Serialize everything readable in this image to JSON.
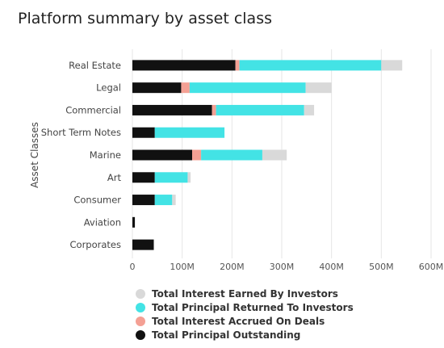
{
  "chart_data": {
    "type": "bar",
    "orientation": "horizontal",
    "stacked": true,
    "title": "Platform summary by asset class",
    "ylabel": "Asset Classes",
    "categories": [
      "Real Estate",
      "Legal",
      "Commercial",
      "Short Term Notes",
      "Marine",
      "Art",
      "Consumer",
      "Aviation",
      "Corporates"
    ],
    "series": [
      {
        "name": "Total Principal Outstanding",
        "color": "#111111",
        "values": [
          207,
          98,
          160,
          45,
          120,
          45,
          45,
          5,
          43
        ]
      },
      {
        "name": "Total Interest Accrued On Deals",
        "color": "#f4a094",
        "values": [
          8,
          17,
          8,
          0,
          18,
          0,
          0,
          0,
          0
        ]
      },
      {
        "name": "Total Principal Returned To Investors",
        "color": "#43e3e5",
        "values": [
          285,
          233,
          177,
          140,
          123,
          66,
          35,
          0,
          0
        ]
      },
      {
        "name": "Total Interest Earned By Investors",
        "color": "#d9d9d9",
        "values": [
          42,
          52,
          20,
          0,
          49,
          6,
          7,
          0,
          0
        ]
      }
    ],
    "x_ticks": [
      "0",
      "100M",
      "200M",
      "300M",
      "400M",
      "500M",
      "600M"
    ],
    "xlim": [
      0,
      600
    ],
    "grid": "vertical",
    "legend_order": [
      "Total Interest Earned By Investors",
      "Total Principal Returned To Investors",
      "Total Interest Accrued On Deals",
      "Total Principal Outstanding"
    ],
    "legend_placement": "bottom"
  }
}
